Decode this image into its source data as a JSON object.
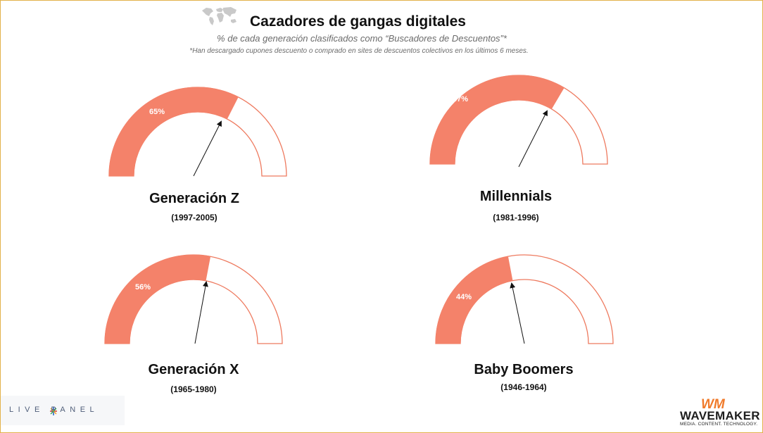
{
  "header": {
    "title": "Cazadores de gangas digitales",
    "subtitle": "% de cada generación clasificados como “Buscadores de Descuentos”*",
    "footnote": "*Han descargado cupones descuento o comprado en sites de descuentos colectivos en los últimos 6 meses."
  },
  "colors": {
    "gauge_fill": "#f4826a",
    "gauge_stroke": "#ee7a5f",
    "text": "#111111",
    "frame": "#e3b24a",
    "wm_orange": "#f07a2a",
    "wm_red": "#e8343d"
  },
  "chart_data": {
    "type": "gauge",
    "range": [
      0,
      100
    ],
    "unit": "%",
    "series": [
      {
        "name": "Generación Z",
        "years": "(1997-2005)",
        "value": 65,
        "label": "65%"
      },
      {
        "name": "Millennials",
        "years": "(1981-1996)",
        "value": 67,
        "label": "67%"
      },
      {
        "name": "Generación X",
        "years": "(1965-1980)",
        "value": 56,
        "label": "56%"
      },
      {
        "name": "Baby Boomers",
        "years": "(1946-1964)",
        "value": 44,
        "label": "44%"
      }
    ]
  },
  "logos": {
    "left": "LIVE PANEL",
    "right_mark": "WM",
    "right_name": "WAVEMAKER",
    "right_tagline": "MEDIA. CONTENT. TECHNOLOGY."
  }
}
